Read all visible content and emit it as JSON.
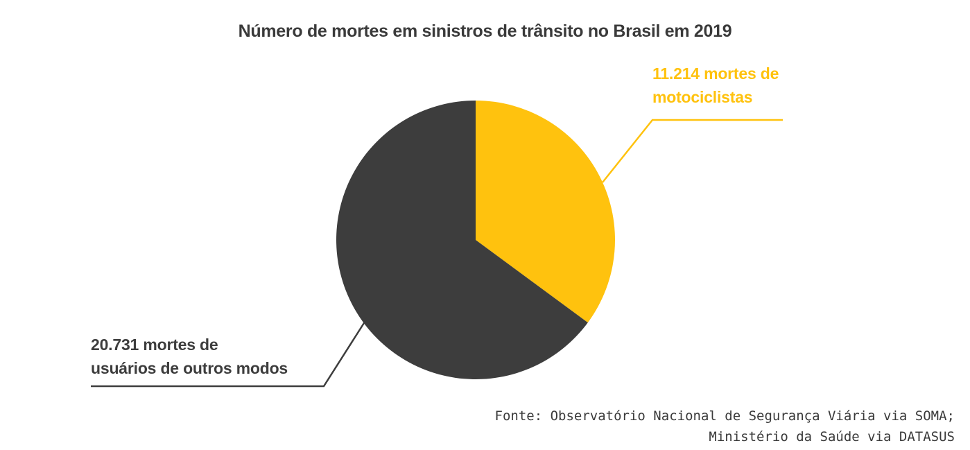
{
  "title": "Número de mortes em sinistros de trânsito no Brasil em 2019",
  "chart_data": {
    "type": "pie",
    "title": "Número de mortes em sinistros de trânsito no Brasil em 2019",
    "slices": [
      {
        "label": "mortes de motociclistas",
        "value": 11214,
        "display_value": "11.214",
        "color": "#FFC20E"
      },
      {
        "label": "mortes de usuários de outros modos",
        "value": 20731,
        "display_value": "20.731",
        "color": "#3D3D3D"
      }
    ],
    "total": 31945,
    "start_angle_deg": -90,
    "direction": "clockwise",
    "legend_position": "callout-labels",
    "source": "Fonte: Observatório Nacional de Segurança Viária via SOMA; Ministério da Saúde via DATASUS"
  },
  "labels": {
    "motorcyclists_line1": "11.214 mortes de",
    "motorcyclists_line2": "motociclistas",
    "others_line1": "20.731 mortes de",
    "others_line2": "usuários de outros modos"
  },
  "source": {
    "line1": "Fonte: Observatório Nacional de Segurança Viária via SOMA;",
    "line2": "Ministério da Saúde via DATASUS"
  },
  "colors": {
    "yellow": "#FFC20E",
    "dark": "#3D3D3D",
    "background": "#FFFFFF"
  }
}
